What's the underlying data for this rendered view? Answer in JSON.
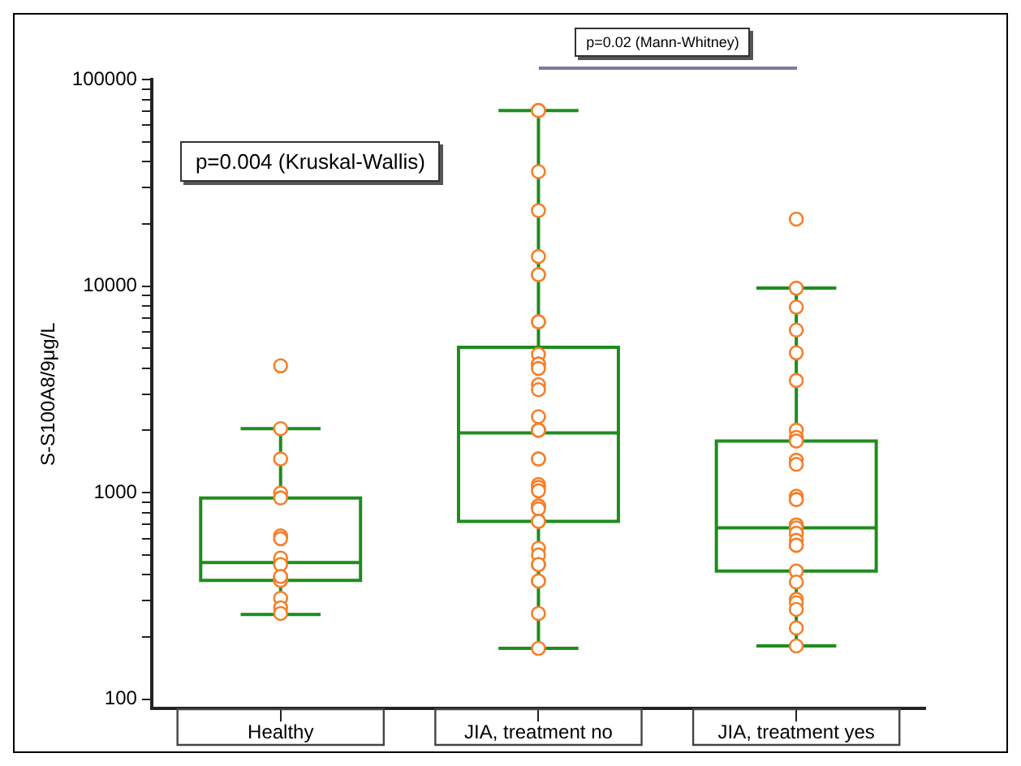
{
  "chart_data": {
    "type": "box",
    "ylabel": "S-S100A8/9μg/L",
    "categories": [
      "Healthy",
      "JIA, treatment no",
      "JIA, treatment yes"
    ],
    "log": true,
    "ylim": [
      90,
      100000
    ],
    "yticks": [
      100,
      {
        "value": 200,
        "label": null
      },
      {
        "value": 300,
        "label": null
      },
      {
        "value": 400,
        "label": null
      },
      {
        "value": 500,
        "label": null
      },
      {
        "value": 600,
        "label": null
      },
      {
        "value": 700,
        "label": null
      },
      {
        "value": 800,
        "label": null
      },
      {
        "value": 900,
        "label": null
      },
      1000,
      {
        "value": 2000,
        "label": null
      },
      {
        "value": 3000,
        "label": null
      },
      {
        "value": 4000,
        "label": null
      },
      {
        "value": 5000,
        "label": null
      },
      {
        "value": 6000,
        "label": null
      },
      {
        "value": 7000,
        "label": null
      },
      {
        "value": 8000,
        "label": null
      },
      {
        "value": 9000,
        "label": null
      },
      10000,
      {
        "value": 20000,
        "label": null
      },
      {
        "value": 30000,
        "label": null
      },
      {
        "value": 40000,
        "label": null
      },
      {
        "value": 50000,
        "label": null
      },
      {
        "value": 60000,
        "label": null
      },
      {
        "value": 70000,
        "label": null
      },
      {
        "value": 80000,
        "label": null
      },
      {
        "value": 90000,
        "label": null
      },
      100000
    ],
    "grid": false,
    "legend": false,
    "color": "#1e8c1e",
    "boxes": [
      {
        "low": 257,
        "q1": 376,
        "median": 458,
        "q3": 942,
        "high": 2040
      },
      {
        "low": 176,
        "q1": 726,
        "median": 1945,
        "q3": 5050,
        "high": 70800
      },
      {
        "low": 181,
        "q1": 417,
        "median": 675,
        "q3": 1776,
        "high": 9770
      }
    ],
    "series": [
      {
        "type": "scatter",
        "color": "#f57f2a",
        "marker": "circle",
        "x": [
          "Healthy",
          "Healthy",
          "Healthy",
          "Healthy",
          "Healthy",
          "Healthy",
          "Healthy",
          "Healthy",
          "Healthy",
          "Healthy",
          "Healthy",
          "Healthy",
          "Healthy",
          "Healthy",
          "Healthy",
          "Healthy",
          "JIA, treatment no",
          "JIA, treatment no",
          "JIA, treatment no",
          "JIA, treatment no",
          "JIA, treatment no",
          "JIA, treatment no",
          "JIA, treatment no",
          "JIA, treatment no",
          "JIA, treatment no",
          "JIA, treatment no",
          "JIA, treatment no",
          "JIA, treatment no",
          "JIA, treatment no",
          "JIA, treatment no",
          "JIA, treatment no",
          "JIA, treatment no",
          "JIA, treatment no",
          "JIA, treatment no",
          "JIA, treatment no",
          "JIA, treatment no",
          "JIA, treatment no",
          "JIA, treatment no",
          "JIA, treatment no",
          "JIA, treatment no",
          "JIA, treatment no",
          "JIA, treatment no",
          "JIA, treatment no",
          "JIA, treatment no",
          "JIA, treatment no",
          "JIA, treatment no",
          "JIA, treatment no",
          "JIA, treatment no",
          "JIA, treatment no",
          "JIA, treatment no",
          "JIA, treatment no",
          "JIA, treatment no",
          "JIA, treatment no",
          "JIA, treatment no",
          "JIA, treatment no",
          "JIA, treatment yes",
          "JIA, treatment yes",
          "JIA, treatment yes",
          "JIA, treatment yes",
          "JIA, treatment yes",
          "JIA, treatment yes",
          "JIA, treatment yes",
          "JIA, treatment yes",
          "JIA, treatment yes",
          "JIA, treatment yes",
          "JIA, treatment yes",
          "JIA, treatment yes",
          "JIA, treatment yes",
          "JIA, treatment yes",
          "JIA, treatment yes",
          "JIA, treatment yes",
          "JIA, treatment yes",
          "JIA, treatment yes",
          "JIA, treatment yes",
          "JIA, treatment yes",
          "JIA, treatment yes",
          "JIA, treatment yes",
          "JIA, treatment yes",
          "JIA, treatment yes",
          "JIA, treatment yes",
          "JIA, treatment yes",
          "JIA, treatment yes",
          "JIA, treatment yes",
          "JIA, treatment yes",
          "JIA, treatment yes",
          "JIA, treatment yes"
        ],
        "values": [
          4110,
          2040,
          1455,
          995,
          942,
          617,
          598,
          482,
          448,
          392,
          376,
          376,
          392,
          308,
          277,
          260,
          70800,
          70800,
          35800,
          23200,
          13900,
          11350,
          11350,
          6710,
          6710,
          4670,
          4190,
          4190,
          3990,
          3330,
          3150,
          2330,
          2005,
          2005,
          2005,
          1455,
          1455,
          1095,
          1060,
          1020,
          861,
          861,
          861,
          834,
          726,
          726,
          537,
          499,
          448,
          448,
          448,
          373,
          373,
          260,
          176,
          21100,
          9770,
          7900,
          6120,
          4750,
          3490,
          2005,
          1850,
          1776,
          1776,
          1435,
          1370,
          960,
          925,
          925,
          697,
          697,
          675,
          635,
          635,
          587,
          556,
          556,
          417,
          417,
          369,
          304,
          293,
          272,
          221,
          181
        ]
      }
    ],
    "annotations": [
      "p=0.004 (Kruskal-Wallis)",
      "p=0.02 (Mann-Whitney)"
    ]
  }
}
